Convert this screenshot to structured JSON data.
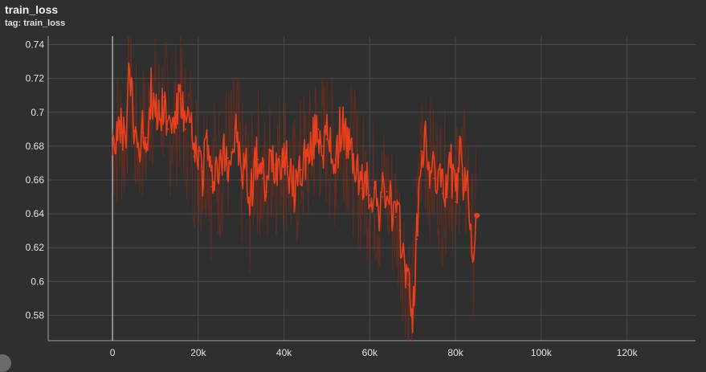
{
  "card": {
    "title": "train_loss",
    "subtitle": "tag: train_loss"
  },
  "colors": {
    "background": "#2f2f2f",
    "grid": "#4a4a4a",
    "axis": "#a0a0a0",
    "raw_series": "#8a2a12",
    "smoothed_series": "#e8401c"
  },
  "chart_data": {
    "type": "line",
    "title": "",
    "xlabel": "",
    "ylabel": "",
    "xlim": [
      -15000,
      136000
    ],
    "ylim": [
      0.565,
      0.745
    ],
    "x_ticks": [
      0,
      20000,
      40000,
      60000,
      80000,
      100000,
      120000
    ],
    "x_tick_labels": [
      "0",
      "20k",
      "40k",
      "60k",
      "80k",
      "100k",
      "120k"
    ],
    "y_ticks": [
      0.58,
      0.6,
      0.62,
      0.64,
      0.66,
      0.68,
      0.7,
      0.72,
      0.74
    ],
    "y_tick_labels": [
      "0.58",
      "0.6",
      "0.62",
      "0.64",
      "0.66",
      "0.68",
      "0.7",
      "0.72",
      "0.74"
    ],
    "grid": true,
    "legend": "none",
    "series": [
      {
        "role": "smoothed",
        "x": [
          0,
          1000,
          2000,
          3000,
          4000,
          5000,
          6000,
          7000,
          8000,
          9000,
          10000,
          11000,
          12000,
          13000,
          14000,
          15000,
          16000,
          17000,
          18000,
          19000,
          20000,
          21000,
          22000,
          23000,
          24000,
          25000,
          26000,
          27000,
          28000,
          29000,
          30000,
          31000,
          32000,
          33000,
          34000,
          35000,
          36000,
          37000,
          38000,
          39000,
          40000,
          41000,
          42000,
          43000,
          44000,
          45000,
          46000,
          47000,
          48000,
          49000,
          50000,
          51000,
          52000,
          53000,
          54000,
          55000,
          56000,
          57000,
          58000,
          59000,
          60000,
          61000,
          62000,
          63000,
          64000,
          65000,
          66000,
          67000,
          68000,
          69000,
          70000,
          71000,
          72000,
          73000,
          74000,
          75000,
          76000,
          77000,
          78000,
          79000,
          80000,
          81000,
          82000,
          83000,
          84000,
          85000
        ],
        "y": [
          0.686,
          0.684,
          0.688,
          0.683,
          0.725,
          0.689,
          0.682,
          0.688,
          0.685,
          0.713,
          0.703,
          0.697,
          0.709,
          0.69,
          0.695,
          0.7,
          0.708,
          0.69,
          0.694,
          0.674,
          0.677,
          0.665,
          0.686,
          0.656,
          0.67,
          0.664,
          0.677,
          0.673,
          0.678,
          0.688,
          0.66,
          0.671,
          0.645,
          0.668,
          0.672,
          0.661,
          0.653,
          0.675,
          0.669,
          0.674,
          0.676,
          0.668,
          0.652,
          0.66,
          0.666,
          0.674,
          0.672,
          0.685,
          0.69,
          0.68,
          0.684,
          0.677,
          0.672,
          0.688,
          0.692,
          0.678,
          0.673,
          0.666,
          0.655,
          0.66,
          0.651,
          0.655,
          0.642,
          0.65,
          0.653,
          0.644,
          0.638,
          0.63,
          0.615,
          0.598,
          0.58,
          0.625,
          0.677,
          0.68,
          0.667,
          0.661,
          0.664,
          0.652,
          0.662,
          0.667,
          0.647,
          0.676,
          0.66,
          0.654,
          0.62,
          0.639
        ]
      }
    ]
  }
}
